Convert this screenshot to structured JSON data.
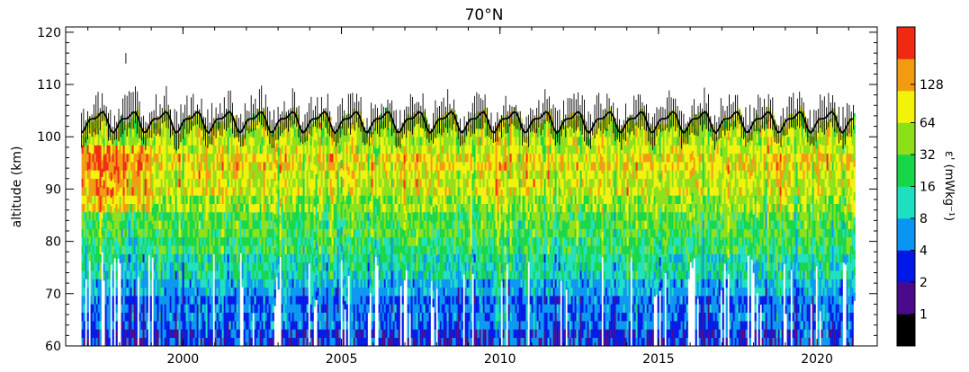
{
  "chart_data": {
    "type": "heatmap",
    "title": "70°N",
    "xlabel": "",
    "ylabel": "altitude (km)",
    "xlim": [
      1996.3,
      2021.9
    ],
    "ylim": [
      60,
      121
    ],
    "x_ticks": [
      2000,
      2005,
      2010,
      2015,
      2020
    ],
    "y_ticks": [
      60,
      70,
      80,
      90,
      100,
      110,
      120
    ],
    "data_start_year": 1996.8,
    "data_end_year": 2021.2,
    "grid": false,
    "colorbar": {
      "label": "ε' (mWkg⁻¹)",
      "levels": [
        "1",
        "2",
        "4",
        "8",
        "16",
        "32",
        "64",
        "128"
      ],
      "colors": [
        "#000000",
        "#4b0a8c",
        "#0018e6",
        "#0a96f0",
        "#1de0c0",
        "#17d648",
        "#8ce01a",
        "#f2f20a",
        "#f29a10",
        "#f02a12"
      ],
      "level_names": [
        "<1",
        "1–2",
        "2–4",
        "4–8",
        "8–16",
        "16–32",
        "32–64",
        "64–128",
        ">128 (orange)",
        ">128 (red)"
      ]
    },
    "annual_profile": {
      "description_levels_by_altitude_km": [
        {
          "alt_min": 60,
          "alt_max": 68,
          "level": "2–4"
        },
        {
          "alt_min": 68,
          "alt_max": 74,
          "level": "4–8"
        },
        {
          "alt_min": 74,
          "alt_max": 80,
          "level": "8–16"
        },
        {
          "alt_min": 80,
          "alt_max": 86,
          "level": "16–32"
        },
        {
          "alt_min": 86,
          "alt_max": 93,
          "level": "32–64"
        },
        {
          "alt_min": 93,
          "alt_max": 98,
          "level": "64–128"
        },
        {
          "alt_min": 98,
          "alt_max": 102,
          "level": "32–64"
        }
      ]
    },
    "upper_boundary_km": {
      "mean": 103,
      "seasonal_amplitude": 1.6,
      "range": [
        100.5,
        106
      ]
    },
    "max_spike_km": {
      "x": 1998.2,
      "y": 116
    }
  }
}
